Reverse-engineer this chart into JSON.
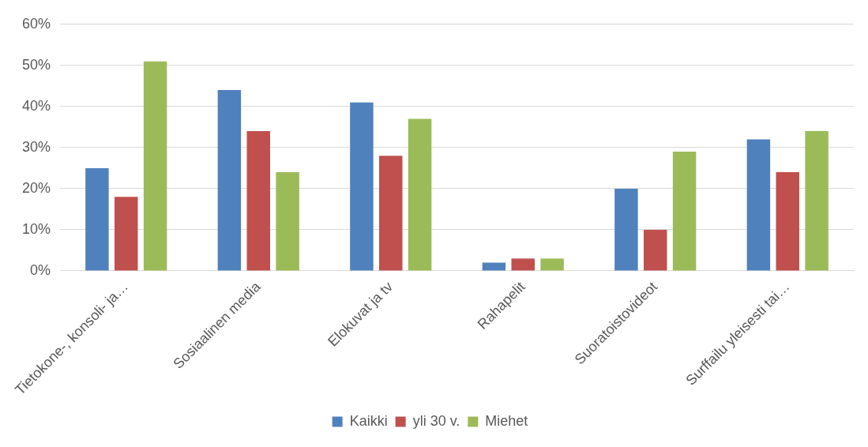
{
  "chart_data": {
    "type": "bar",
    "categories": [
      "Tietokone-, konsoli- ja…",
      "Sosiaalinen media",
      "Elokuvat ja tv",
      "Rahapelit",
      "Suoratoistovideot",
      "Surffailu yleisesti tai…"
    ],
    "series": [
      {
        "name": "Kaikki",
        "color": "#4f81bd",
        "values": [
          25,
          44,
          41,
          2,
          20,
          32
        ]
      },
      {
        "name": "yli 30 v.",
        "color": "#c0504d",
        "values": [
          18,
          34,
          28,
          3,
          10,
          24
        ]
      },
      {
        "name": "Miehet",
        "color": "#9bbb59",
        "values": [
          51,
          24,
          37,
          3,
          29,
          34
        ]
      }
    ],
    "ylim": [
      0,
      60
    ],
    "yticks": [
      {
        "value": 0,
        "label": "0%"
      },
      {
        "value": 10,
        "label": "10%"
      },
      {
        "value": 20,
        "label": "20%"
      },
      {
        "value": 30,
        "label": "30%"
      },
      {
        "value": 40,
        "label": "40%"
      },
      {
        "value": 50,
        "label": "50%"
      },
      {
        "value": 60,
        "label": "60%"
      }
    ],
    "grid": "y",
    "legend": "bottom"
  }
}
